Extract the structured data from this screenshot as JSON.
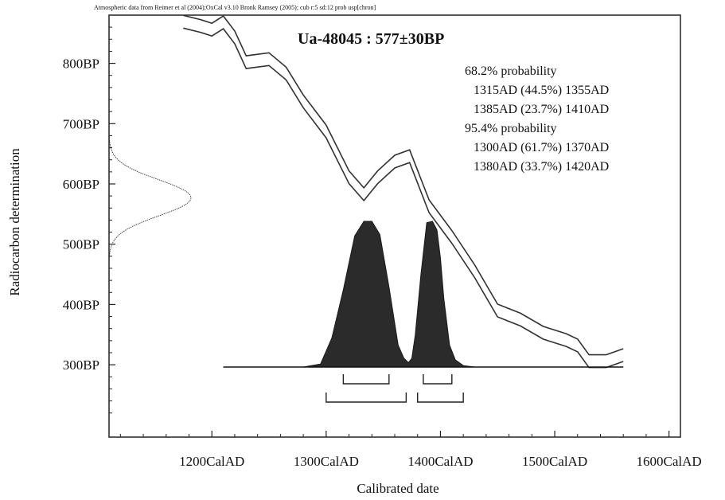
{
  "chart_data": {
    "type": "area",
    "source_note": "Atmospheric data from Reimer et al (2004);OxCal v3.10 Bronk Ramsey (2005); cub r:5 sd:12 prob usp[chron]",
    "sample_title": "Ua-48045 : 577±30BP",
    "xlabel": "Calibrated date",
    "ylabel": "Radiocarbon determination",
    "xlim": [
      1110,
      1610
    ],
    "ylim": [
      180,
      880
    ],
    "x_ticks": [
      {
        "value": 1200,
        "label": "1200CalAD"
      },
      {
        "value": 1300,
        "label": "1300CalAD"
      },
      {
        "value": 1400,
        "label": "1400CalAD"
      },
      {
        "value": 1500,
        "label": "1500CalAD"
      },
      {
        "value": 1600,
        "label": "1600CalAD"
      }
    ],
    "y_ticks": [
      {
        "value": 300,
        "label": "300BP"
      },
      {
        "value": 400,
        "label": "400BP"
      },
      {
        "value": 500,
        "label": "500BP"
      },
      {
        "value": 600,
        "label": "600BP"
      },
      {
        "value": 700,
        "label": "700BP"
      },
      {
        "value": 800,
        "label": "800BP"
      }
    ],
    "probability_lines": [
      "68.2% probability",
      "  1315AD (44.5%) 1355AD",
      "  1385AD (23.7%) 1410AD",
      "95.4% probability",
      "  1300AD (61.7%) 1370AD",
      "  1380AD (33.7%) 1420AD"
    ],
    "radiocarbon_measurement": {
      "mean_bp": 577,
      "sd_bp": 30
    },
    "calibration_curve": {
      "x": [
        1175,
        1190,
        1200,
        1210,
        1220,
        1230,
        1250,
        1265,
        1280,
        1300,
        1320,
        1333,
        1345,
        1360,
        1373,
        1390,
        1410,
        1430,
        1450,
        1470,
        1490,
        1510,
        1520,
        1530,
        1545,
        1560
      ],
      "y": [
        869,
        862,
        856,
        868,
        843,
        802,
        807,
        783,
        737,
        687,
        611,
        583,
        611,
        637,
        646,
        563,
        512,
        455,
        390,
        375,
        353,
        341,
        332,
        306,
        306,
        316
      ]
    },
    "posterior_distribution": {
      "x": [
        1210,
        1280,
        1295,
        1305,
        1315,
        1325,
        1333,
        1340,
        1347,
        1355,
        1363,
        1368,
        1372,
        1375,
        1378,
        1383,
        1388,
        1393,
        1397,
        1400,
        1403,
        1408,
        1413,
        1420,
        1430,
        1560
      ],
      "density": [
        0,
        0,
        0.02,
        0.2,
        0.53,
        0.9,
        1.0,
        1.0,
        0.91,
        0.55,
        0.15,
        0.06,
        0.03,
        0.06,
        0.22,
        0.64,
        0.99,
        1.0,
        0.94,
        0.75,
        0.47,
        0.15,
        0.05,
        0.01,
        0,
        0
      ]
    },
    "ranges_68": [
      [
        1315,
        1355
      ],
      [
        1385,
        1410
      ]
    ],
    "ranges_95": [
      [
        1300,
        1370
      ],
      [
        1380,
        1420
      ]
    ]
  }
}
